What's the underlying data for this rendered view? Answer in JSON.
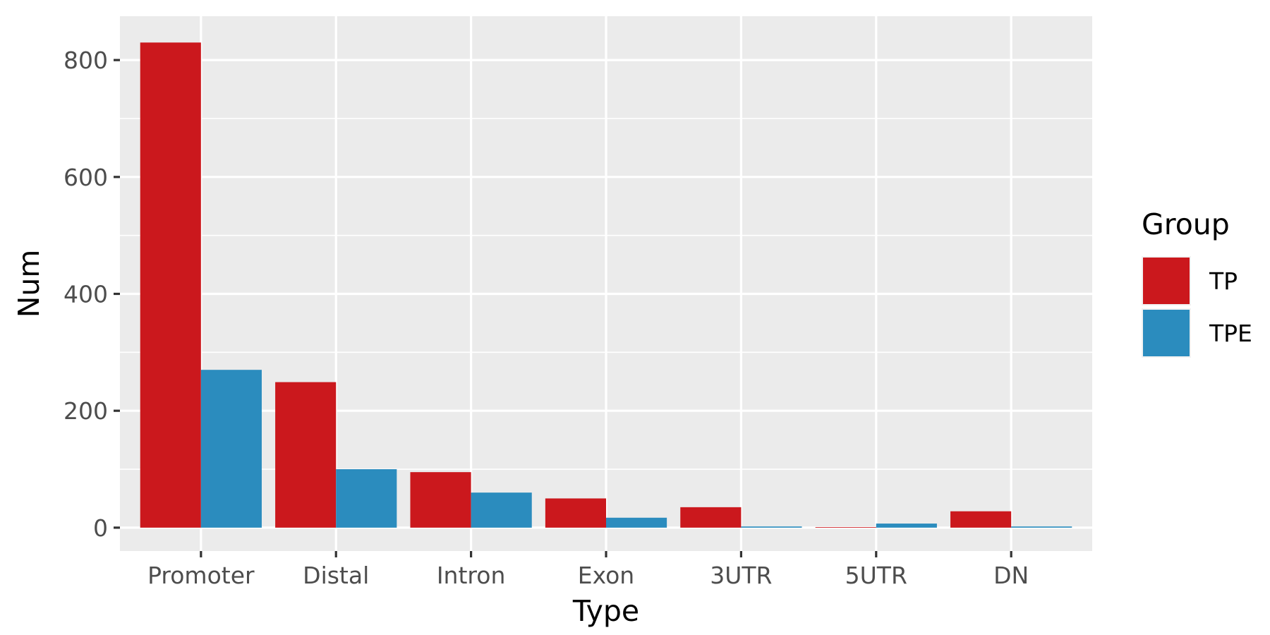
{
  "chart_data": {
    "type": "bar",
    "title": "",
    "xlabel": "Type",
    "ylabel": "Num",
    "categories": [
      "Promoter",
      "Distal",
      "Intron",
      "Exon",
      "3UTR",
      "5UTR",
      "DN"
    ],
    "series": [
      {
        "name": "TP",
        "color": "#CB181D",
        "values": [
          830,
          249,
          95,
          50,
          35,
          1,
          28
        ]
      },
      {
        "name": "TPE",
        "color": "#2B8CBE",
        "values": [
          270,
          100,
          60,
          17,
          2,
          7,
          2
        ]
      }
    ],
    "ylim": [
      -40,
      875
    ],
    "yticks": [
      0,
      200,
      400,
      600,
      800
    ],
    "grid": true,
    "legend": {
      "title": "Group",
      "position": "right"
    },
    "colors": {
      "panel": "#EBEBEB",
      "grid": "#FFFFFF"
    }
  }
}
